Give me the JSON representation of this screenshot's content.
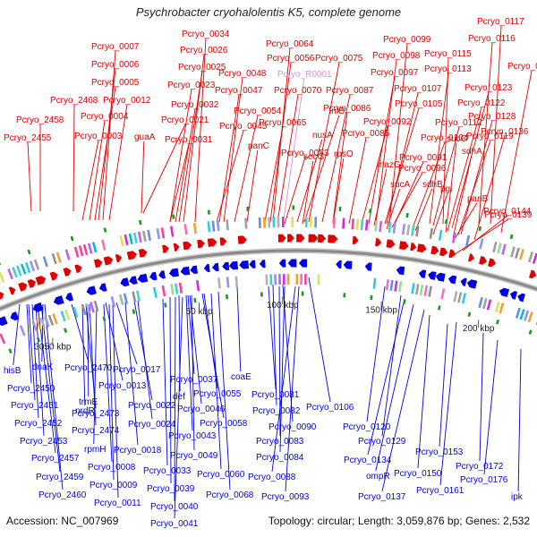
{
  "title": "Psychrobacter cryohalolentis K5, complete genome",
  "footer": {
    "accession": "Accession: NC_007969",
    "summary": "Topology: circular; Length: 3,059,876 bp; Genes: 2,532"
  },
  "colors": {
    "forward": "#e00000",
    "reverse": "#0000e0",
    "rna": "#e090d0",
    "backbone": "#8a8a8a",
    "tick_mark": "#1a9a1a"
  },
  "scale_labels": [
    "3050 kbp",
    "50 kbp",
    "100 kbp",
    "150 kbp",
    "200 kbp"
  ],
  "top_labels": [
    {
      "text": "Pcryo_0117",
      "color": "red"
    },
    {
      "text": "Pcryo_0116",
      "color": "red"
    },
    {
      "text": "Pcryo_0099",
      "color": "red"
    },
    {
      "text": "Pcryo_0098",
      "color": "red"
    },
    {
      "text": "Pcryo_0115",
      "color": "red"
    },
    {
      "text": "Pcryo_0130",
      "color": "red"
    },
    {
      "text": "Pcryo_0034",
      "color": "red"
    },
    {
      "text": "Pcryo_0064",
      "color": "red"
    },
    {
      "text": "Pcryo_0075",
      "color": "red"
    },
    {
      "text": "Pcryo_0007",
      "color": "red"
    },
    {
      "text": "Pcryo_0026",
      "color": "red"
    },
    {
      "text": "Pcryo_0056",
      "color": "red"
    },
    {
      "text": "Pcryo_R0001",
      "color": "pink"
    },
    {
      "text": "Pcryo_0097",
      "color": "red"
    },
    {
      "text": "Pcryo_0113",
      "color": "red"
    },
    {
      "text": "Pcryo_0006",
      "color": "red"
    },
    {
      "text": "Pcryo_0025",
      "color": "red"
    },
    {
      "text": "Pcryo_0048",
      "color": "red"
    },
    {
      "text": "Pcryo_0005",
      "color": "red"
    },
    {
      "text": "Pcryo_0023",
      "color": "red"
    },
    {
      "text": "Pcryo_0047",
      "color": "red"
    },
    {
      "text": "Pcryo_0070",
      "color": "red"
    },
    {
      "text": "Pcryo_0087",
      "color": "red"
    },
    {
      "text": "Pcryo_0107",
      "color": "red"
    },
    {
      "text": "Pcryo_0123",
      "color": "red"
    },
    {
      "text": "Pcryo_2468",
      "color": "red"
    },
    {
      "text": "Pcryo_0012",
      "color": "red"
    },
    {
      "text": "Pcryo_0032",
      "color": "red"
    },
    {
      "text": "Pcryo_0105",
      "color": "red"
    },
    {
      "text": "Pcryo_0122",
      "color": "red"
    },
    {
      "text": "Pcryo_0054",
      "color": "red"
    },
    {
      "text": "infB",
      "color": "red"
    },
    {
      "text": "Pcryo_0086",
      "color": "red"
    },
    {
      "text": "Pcryo_0128",
      "color": "red"
    },
    {
      "text": "Pcryo_2458",
      "color": "red"
    },
    {
      "text": "Pcryo_0004",
      "color": "red"
    },
    {
      "text": "Pcryo_0021",
      "color": "red"
    },
    {
      "text": "Pcryo_0045",
      "color": "red"
    },
    {
      "text": "Pcryo_0065",
      "color": "red"
    },
    {
      "text": "Pcryo_0092",
      "color": "red"
    },
    {
      "text": "Pcryo_0112",
      "color": "red"
    },
    {
      "text": "Pcryo_0136",
      "color": "red"
    },
    {
      "text": "Pcryo_2455",
      "color": "red"
    },
    {
      "text": "Pcryo_0003",
      "color": "red"
    },
    {
      "text": "guaA",
      "color": "red"
    },
    {
      "text": "Pcryo_0031",
      "color": "red"
    },
    {
      "text": "nusA",
      "color": "red"
    },
    {
      "text": "Pcryo_0085",
      "color": "red"
    },
    {
      "text": "Pcryo_0104",
      "color": "red"
    },
    {
      "text": "sucC",
      "color": "red"
    },
    {
      "text": "Pcryo_0119",
      "color": "red"
    },
    {
      "text": "panC",
      "color": "red"
    },
    {
      "text": "Pcryo_0053",
      "color": "red"
    },
    {
      "text": "secG",
      "color": "red"
    },
    {
      "text": "rpsO",
      "color": "red"
    },
    {
      "text": "Pcryo_0091",
      "color": "red"
    },
    {
      "text": "sdhA",
      "color": "red"
    },
    {
      "text": "mazG",
      "color": "red"
    },
    {
      "text": "Pcryo_0096",
      "color": "red"
    },
    {
      "text": "sucA",
      "color": "red"
    },
    {
      "text": "sdhB",
      "color": "red"
    },
    {
      "text": "pgi",
      "color": "red"
    },
    {
      "text": "panB",
      "color": "red"
    },
    {
      "text": "Pcryo_0144",
      "color": "red"
    },
    {
      "text": "Pcryo_0139",
      "color": "red"
    }
  ],
  "bottom_labels": [
    "hisB",
    "dnaK",
    "Pcryo_2470",
    "Pcryo_0017",
    "Pcryo_0037",
    "coaE",
    "Pcryo_2450",
    "Pcryo_0013",
    "def",
    "Pcryo_0055",
    "Pcryo_0081",
    "trmE",
    "Pcryo_2451",
    "nrdR",
    "Pcryo_0022",
    "Pcryo_0046",
    "Pcryo_0082",
    "Pcryo_0106",
    "Pcryo_2473",
    "Pcryo_2452",
    "Pcryo_0024",
    "Pcryo_0058",
    "Pcryo_0090",
    "Pcryo_0120",
    "Pcryo_2474",
    "Pcryo_0043",
    "Pcryo_0083",
    "Pcryo_0129",
    "Pcryo_2453",
    "rpmH",
    "Pcryo_0018",
    "Pcryo_0049",
    "Pcryo_0153",
    "Pcryo_0084",
    "Pcryo_0134",
    "Pcryo_2457",
    "Pcryo_0008",
    "Pcryo_0033",
    "Pcryo_0060",
    "Pcryo_0172",
    "Pcryo_0088",
    "ompR",
    "Pcryo_0150",
    "Pcryo_2459",
    "Pcryo_0009",
    "Pcryo_0039",
    "Pcryo_0176",
    "Pcryo_0161",
    "Pcryo_2460",
    "Pcryo_0068",
    "Pcryo_0093",
    "Pcryo_0137",
    "ipk",
    "Pcryo_0011",
    "Pcryo_0040",
    "Pcryo_0041"
  ]
}
